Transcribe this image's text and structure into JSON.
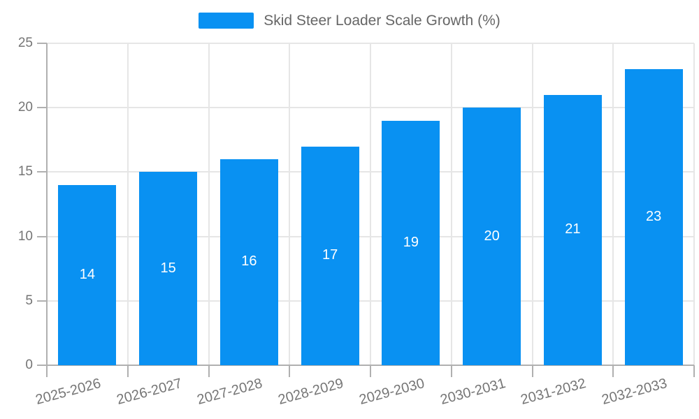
{
  "legend": {
    "label": "Skid Steer Loader Scale Growth (%)"
  },
  "chart_data": {
    "type": "bar",
    "title": "Skid Steer Loader Scale Growth (%)",
    "categories": [
      "2025-2026",
      "2026-2027",
      "2027-2028",
      "2028-2029",
      "2029-2030",
      "2030-2031",
      "2031-2032",
      "2032-2033"
    ],
    "values": [
      14,
      15,
      16,
      17,
      19,
      20,
      21,
      23
    ],
    "bar_labels": [
      "14",
      "15",
      "16",
      "17",
      "19",
      "20",
      "21",
      "23"
    ],
    "xlabel": "",
    "ylabel": "",
    "ylim": [
      0,
      25
    ],
    "yticks": [
      0,
      5,
      10,
      15,
      20,
      25
    ],
    "grid": true,
    "legend_position": "top-center",
    "colors": {
      "bar": "#0991f2",
      "bar_label": "#ffffff",
      "grid": "#e6e6e6",
      "axis": "#b0b0b0",
      "tick_label": "#757575",
      "legend_text": "#666666"
    }
  }
}
